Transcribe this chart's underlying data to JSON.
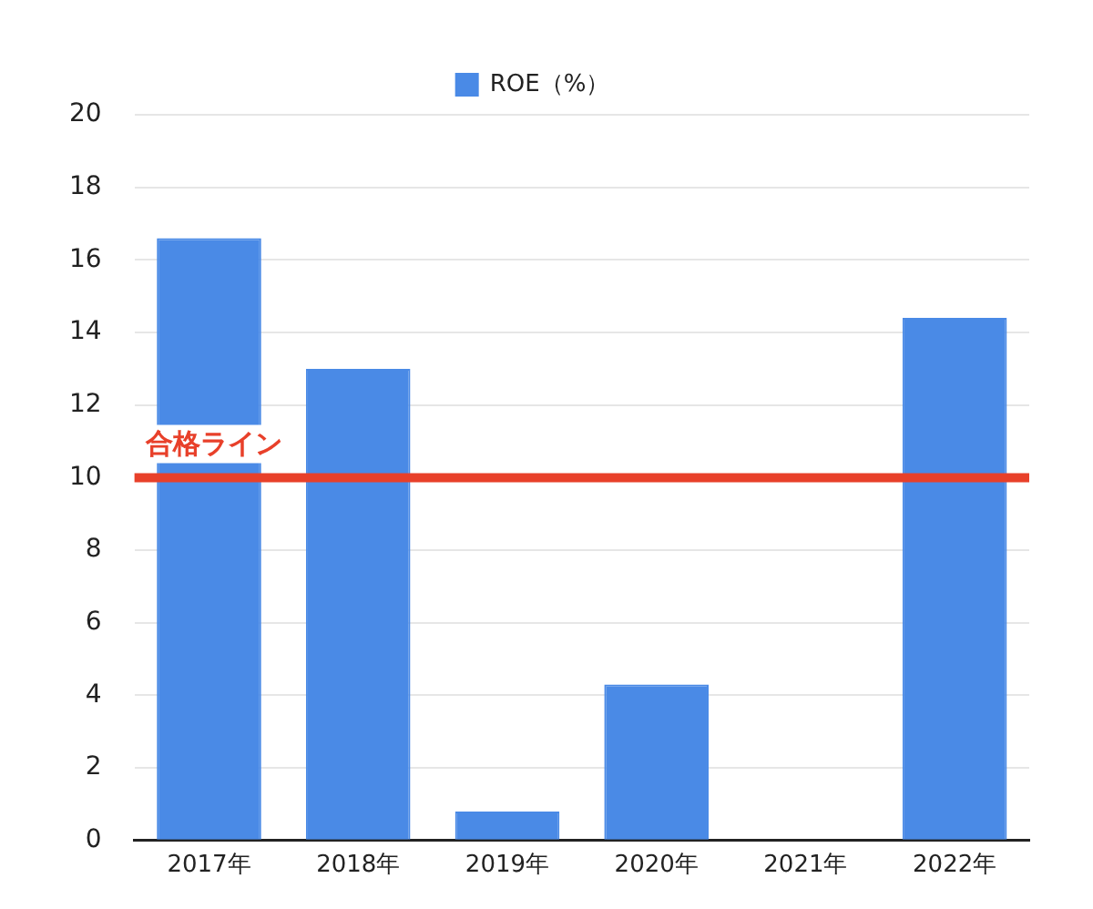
{
  "chart_data": {
    "type": "bar",
    "categories": [
      "2017年",
      "2018年",
      "2019年",
      "2020年",
      "2021年",
      "2022年"
    ],
    "series": [
      {
        "name": "ROE（%）",
        "color": "#4a8ae6",
        "values": [
          16.6,
          13.0,
          0.8,
          4.3,
          0,
          14.4
        ]
      }
    ],
    "ylim": [
      0,
      20
    ],
    "yticks": [
      0,
      2,
      4,
      6,
      8,
      10,
      12,
      14,
      16,
      18,
      20
    ],
    "grid": "y",
    "legend": "top",
    "ref_lines": [
      {
        "axis": "y",
        "value": 10,
        "label": "合格ライン",
        "color": "#e8402a"
      }
    ]
  }
}
